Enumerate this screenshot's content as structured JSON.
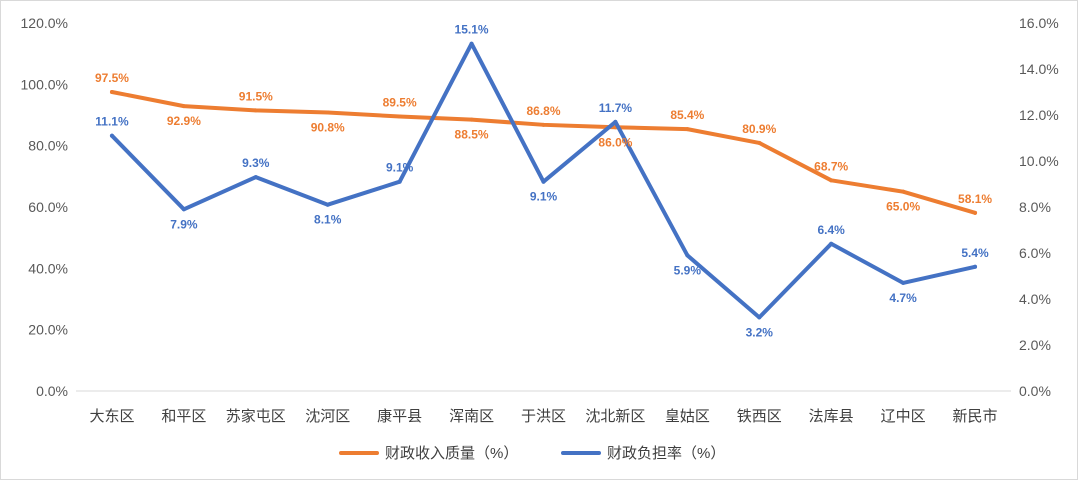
{
  "chart_data": {
    "type": "line",
    "categories": [
      "大东区",
      "和平区",
      "苏家屯区",
      "沈河区",
      "康平县",
      "浑南区",
      "于洪区",
      "沈北新区",
      "皇姑区",
      "铁西区",
      "法库县",
      "辽中区",
      "新民市"
    ],
    "series": [
      {
        "name": "财政收入质量（%）",
        "axis": "left",
        "color": "#ED7D31",
        "values": [
          97.5,
          92.9,
          91.5,
          90.8,
          89.5,
          88.5,
          86.8,
          86.0,
          85.4,
          80.9,
          68.7,
          65.0,
          58.1
        ],
        "labels": [
          "97.5%",
          "92.9%",
          "91.5%",
          "90.8%",
          "89.5%",
          "88.5%",
          "86.8%",
          "86.0%",
          "85.4%",
          "80.9%",
          "68.7%",
          "65.0%",
          "58.1%"
        ]
      },
      {
        "name": "财政负担率（%）",
        "axis": "right",
        "color": "#4472C4",
        "values": [
          11.1,
          7.9,
          9.3,
          8.1,
          9.1,
          15.1,
          9.1,
          11.7,
          5.9,
          3.2,
          6.4,
          4.7,
          5.4
        ],
        "labels": [
          "11.1%",
          "7.9%",
          "9.3%",
          "8.1%",
          "9.1%",
          "15.1%",
          "9.1%",
          "11.7%",
          "5.9%",
          "3.2%",
          "6.4%",
          "4.7%",
          "5.4%"
        ]
      }
    ],
    "y_left": {
      "min": 0,
      "max": 120,
      "ticks": [
        "0.0%",
        "20.0%",
        "40.0%",
        "60.0%",
        "80.0%",
        "100.0%",
        "120.0%"
      ]
    },
    "y_right": {
      "min": 0,
      "max": 16,
      "ticks": [
        "0.0%",
        "2.0%",
        "4.0%",
        "6.0%",
        "8.0%",
        "10.0%",
        "12.0%",
        "14.0%",
        "16.0%"
      ]
    },
    "grid": false,
    "legend": "bottom"
  }
}
